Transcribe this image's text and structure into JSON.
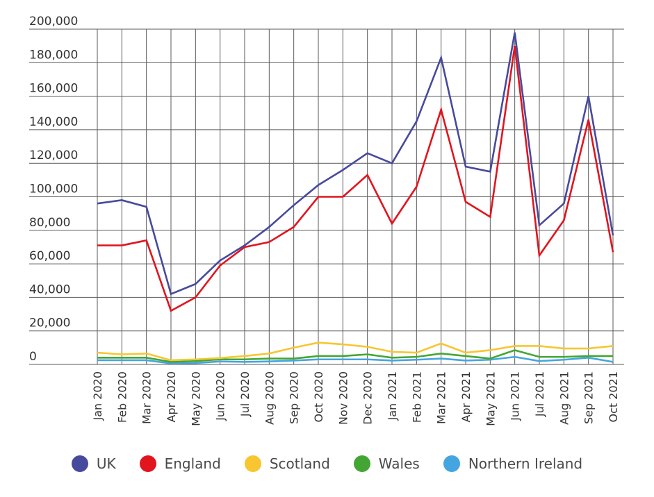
{
  "chart_data": {
    "type": "line",
    "title": "",
    "xlabel": "",
    "ylabel": "",
    "ylim": [
      0,
      200000
    ],
    "yticks": [
      0,
      20000,
      40000,
      60000,
      80000,
      100000,
      120000,
      140000,
      160000,
      180000,
      200000
    ],
    "ytick_labels": [
      "0",
      "20,000",
      "40,000",
      "60,000",
      "80,000",
      "100,000",
      "120,000",
      "140,000",
      "160,000",
      "180,000",
      "200,000"
    ],
    "grid": true,
    "legend_position": "bottom",
    "categories": [
      "Jan 2020",
      "Feb 2020",
      "Mar 2020",
      "Apr 2020",
      "May 2020",
      "Jun 2020",
      "Jul 2020",
      "Aug 2020",
      "Sep 2020",
      "Oct 2020",
      "Nov 2020",
      "Dec 2020",
      "Jan 2021",
      "Feb 2021",
      "Mar 2021",
      "Apr 2021",
      "May 2021",
      "Jun 2021",
      "Jul 2021",
      "Aug 2021",
      "Sep 2021",
      "Oct 2021"
    ],
    "series": [
      {
        "name": "UK",
        "color": "#474a9c",
        "values": [
          96000,
          98000,
          94000,
          42000,
          48000,
          62000,
          71000,
          82000,
          95000,
          107000,
          116000,
          126000,
          120000,
          145000,
          183000,
          118000,
          115000,
          198000,
          83000,
          96000,
          160000,
          77000
        ]
      },
      {
        "name": "England",
        "color": "#e2141e",
        "values": [
          71000,
          71000,
          74000,
          32000,
          40000,
          59000,
          70000,
          73000,
          82000,
          100000,
          100000,
          113000,
          84000,
          106000,
          152000,
          97000,
          88000,
          190000,
          65000,
          86000,
          146000,
          67000
        ]
      },
      {
        "name": "Scotland",
        "color": "#f7c631",
        "values": [
          7000,
          6000,
          6500,
          2500,
          3000,
          3800,
          5000,
          6500,
          10000,
          13000,
          12000,
          10500,
          7500,
          7000,
          12500,
          7000,
          8500,
          11000,
          11000,
          9500,
          9500,
          11000
        ]
      },
      {
        "name": "Wales",
        "color": "#43a634",
        "values": [
          4000,
          4000,
          4000,
          1500,
          2000,
          3000,
          3000,
          3500,
          3500,
          5000,
          5000,
          6000,
          4000,
          4500,
          6500,
          5000,
          3500,
          8500,
          4500,
          4500,
          5000,
          5000
        ]
      },
      {
        "name": "Northern Ireland",
        "color": "#45a5e0",
        "values": [
          2500,
          2500,
          2500,
          600,
          800,
          1800,
          1500,
          1800,
          2300,
          3000,
          3000,
          3000,
          2300,
          2800,
          3500,
          2300,
          2800,
          4500,
          2000,
          2800,
          4000,
          1500
        ]
      }
    ]
  }
}
